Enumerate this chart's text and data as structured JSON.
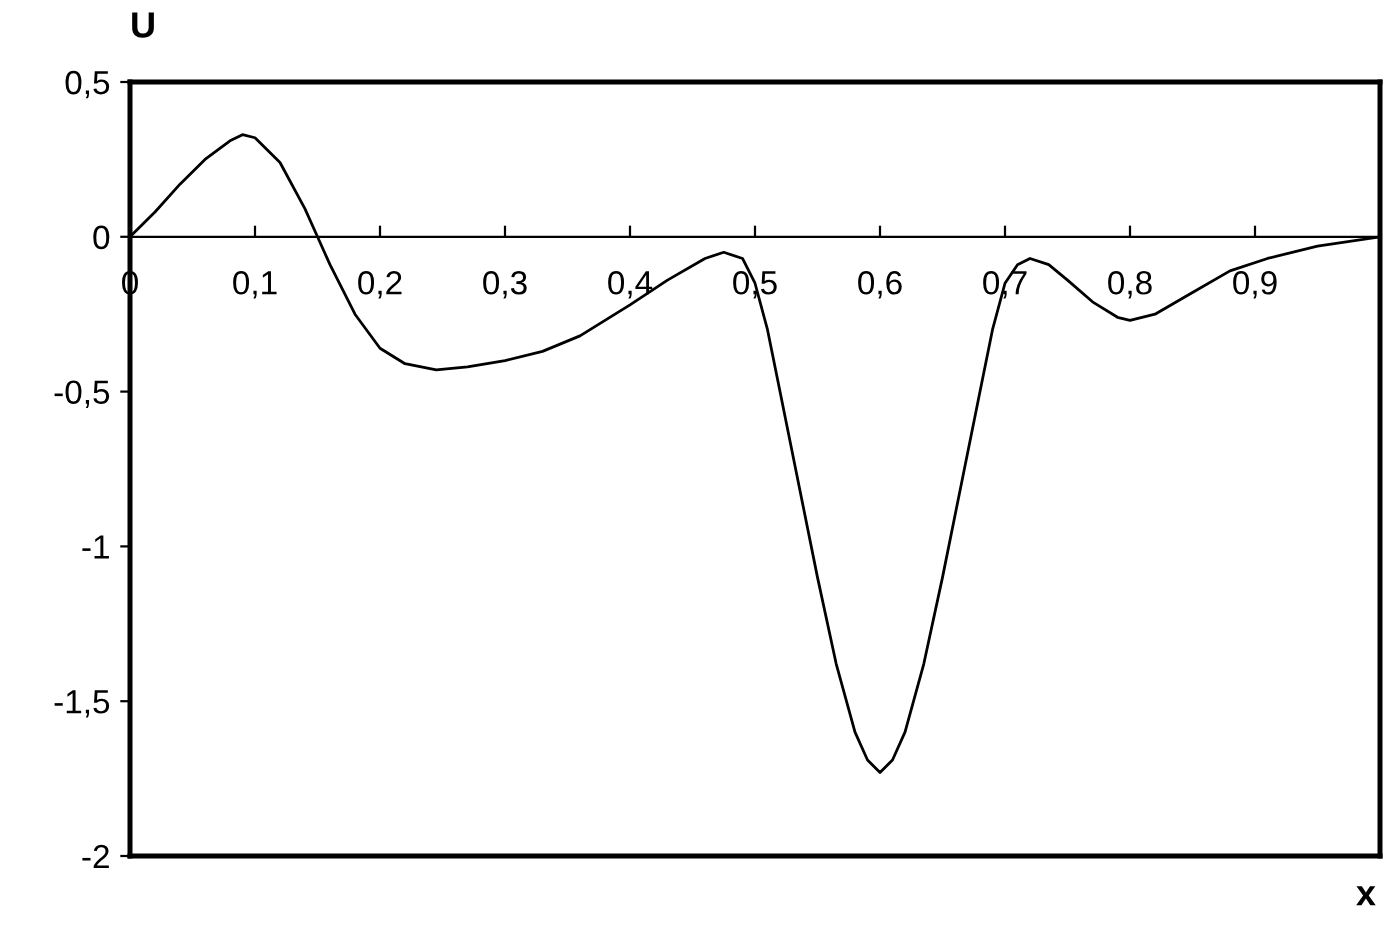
{
  "chart_data": {
    "type": "line",
    "xlabel": "x",
    "ylabel": "U",
    "xlim": [
      0,
      1
    ],
    "ylim": [
      -2,
      0.5
    ],
    "xticks": [
      0,
      {
        "value": 0.1,
        "label": "0,1"
      },
      {
        "value": 0.2,
        "label": "0,2"
      },
      {
        "value": 0.3,
        "label": "0,3"
      },
      {
        "value": 0.4,
        "label": "0,4"
      },
      {
        "value": 0.5,
        "label": "0,5"
      },
      {
        "value": 0.6,
        "label": "0,6"
      },
      {
        "value": 0.7,
        "label": "0,7"
      },
      {
        "value": 0.8,
        "label": "0,8"
      },
      {
        "value": 0.9,
        "label": "0,9"
      }
    ],
    "yticks": [
      {
        "value": -2,
        "label": "-2"
      },
      {
        "value": -1.5,
        "label": "-1,5"
      },
      {
        "value": -1,
        "label": "-1"
      },
      {
        "value": -0.5,
        "label": "-0,5"
      },
      0,
      {
        "value": 0.5,
        "label": "0,5"
      }
    ],
    "grid": false,
    "legend": false,
    "marker": "none",
    "line_style": "solid",
    "x": [
      0,
      0.02,
      0.04,
      0.06,
      0.08,
      0.09,
      0.1,
      0.12,
      0.14,
      0.15,
      0.16,
      0.18,
      0.2,
      0.22,
      0.245,
      0.27,
      0.3,
      0.33,
      0.36,
      0.4,
      0.43,
      0.46,
      0.475,
      0.49,
      0.5,
      0.51,
      0.52,
      0.535,
      0.55,
      0.565,
      0.58,
      0.59,
      0.6,
      0.61,
      0.62,
      0.635,
      0.65,
      0.665,
      0.68,
      0.69,
      0.7,
      0.71,
      0.72,
      0.735,
      0.75,
      0.77,
      0.79,
      0.8,
      0.82,
      0.85,
      0.88,
      0.91,
      0.95,
      1.0
    ],
    "series": [
      {
        "color": "#000000",
        "values": [
          0,
          0.08,
          0.17,
          0.25,
          0.31,
          0.33,
          0.32,
          0.24,
          0.09,
          0,
          -0.09,
          -0.25,
          -0.36,
          -0.41,
          -0.43,
          -0.42,
          -0.4,
          -0.37,
          -0.32,
          -0.22,
          -0.14,
          -0.07,
          -0.05,
          -0.07,
          -0.15,
          -0.3,
          -0.5,
          -0.8,
          -1.1,
          -1.38,
          -1.6,
          -1.69,
          -1.73,
          -1.69,
          -1.6,
          -1.38,
          -1.1,
          -0.8,
          -0.5,
          -0.3,
          -0.15,
          -0.09,
          -0.07,
          -0.09,
          -0.14,
          -0.21,
          -0.26,
          -0.27,
          -0.25,
          -0.18,
          -0.11,
          -0.07,
          -0.03,
          0
        ]
      }
    ]
  }
}
